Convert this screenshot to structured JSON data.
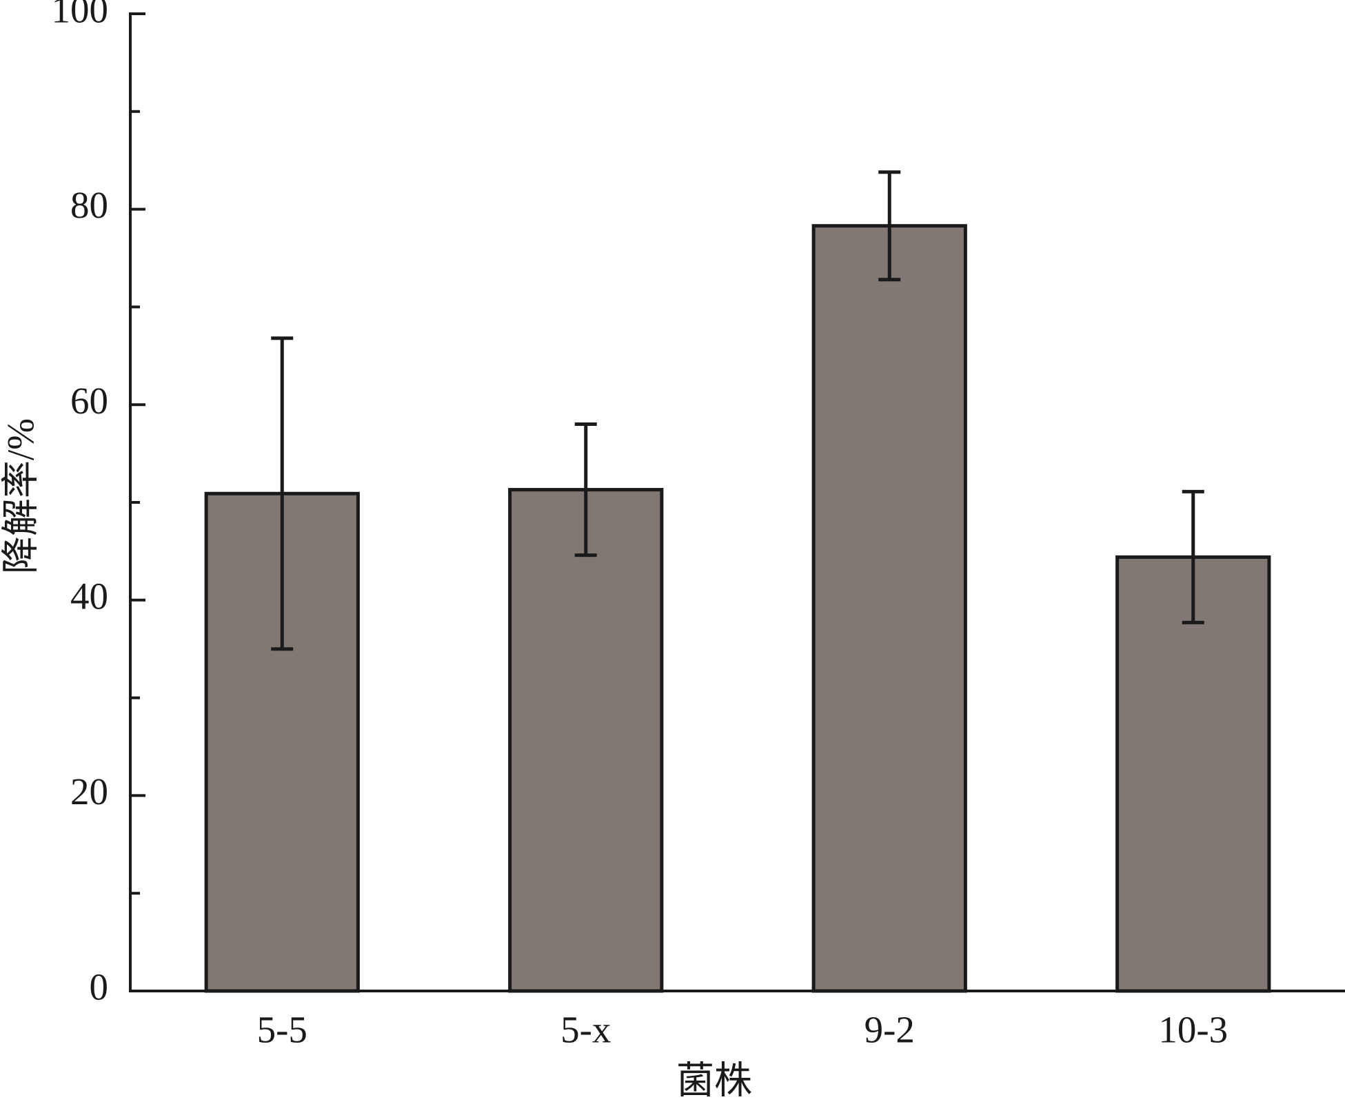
{
  "chart_data": {
    "type": "bar",
    "x_label": "菌株",
    "y_label": "降解率/%",
    "categories": [
      "5-5",
      "5-x",
      "9-2",
      "10-3"
    ],
    "values": [
      50.9,
      51.3,
      78.3,
      44.4
    ],
    "errors": [
      15.9,
      6.7,
      5.5,
      6.7
    ],
    "color": "#817873",
    "ylim": [
      0,
      100
    ],
    "yticks": [
      0,
      20,
      40,
      60,
      80,
      100
    ],
    "yminor_ticks": [
      10,
      30,
      50,
      70,
      90
    ]
  }
}
